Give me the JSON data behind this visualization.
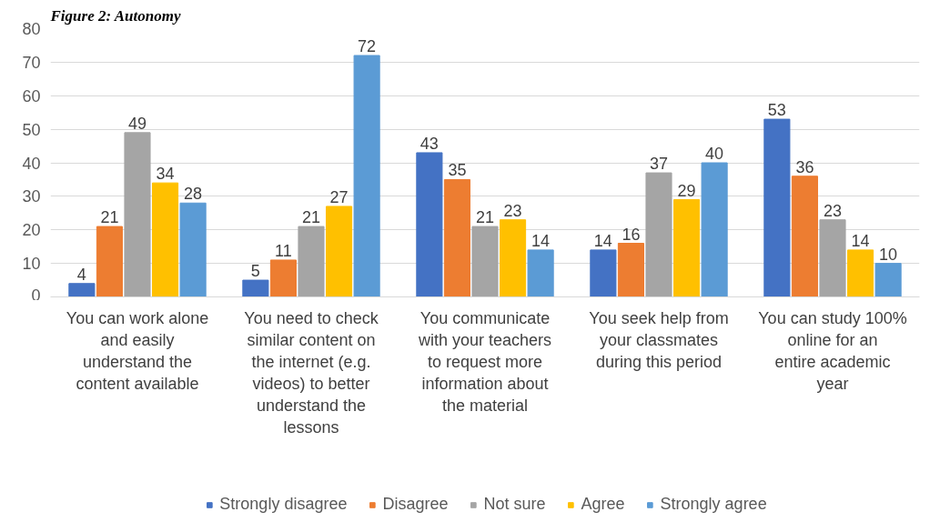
{
  "chart_data": {
    "type": "bar",
    "title": "Figure 2: Autonomy",
    "categories": [
      "You can work alone and easily understand the content available",
      "You need to check similar content on the internet (e.g. videos) to better understand the lessons",
      "You communicate with your teachers to request more information about the material",
      "You seek help from your classmates during this period",
      "You can study 100% online for an entire academic year"
    ],
    "series": [
      {
        "name": "Strongly disagree",
        "color": "#4472c4",
        "values": [
          4,
          5,
          43,
          14,
          53
        ]
      },
      {
        "name": "Disagree",
        "color": "#ed7d31",
        "values": [
          21,
          11,
          35,
          16,
          36
        ]
      },
      {
        "name": "Not sure",
        "color": "#a5a5a5",
        "values": [
          49,
          21,
          21,
          37,
          23
        ]
      },
      {
        "name": "Agree",
        "color": "#ffc000",
        "values": [
          34,
          27,
          23,
          29,
          14
        ]
      },
      {
        "name": "Strongly agree",
        "color": "#5b9bd5",
        "values": [
          28,
          72,
          14,
          40,
          10
        ]
      }
    ],
    "ylim": [
      0,
      80
    ],
    "yticks": [
      0,
      10,
      20,
      30,
      40,
      50,
      60,
      70,
      80
    ],
    "grid": "y",
    "legend": "bottom",
    "data_labels": true
  }
}
